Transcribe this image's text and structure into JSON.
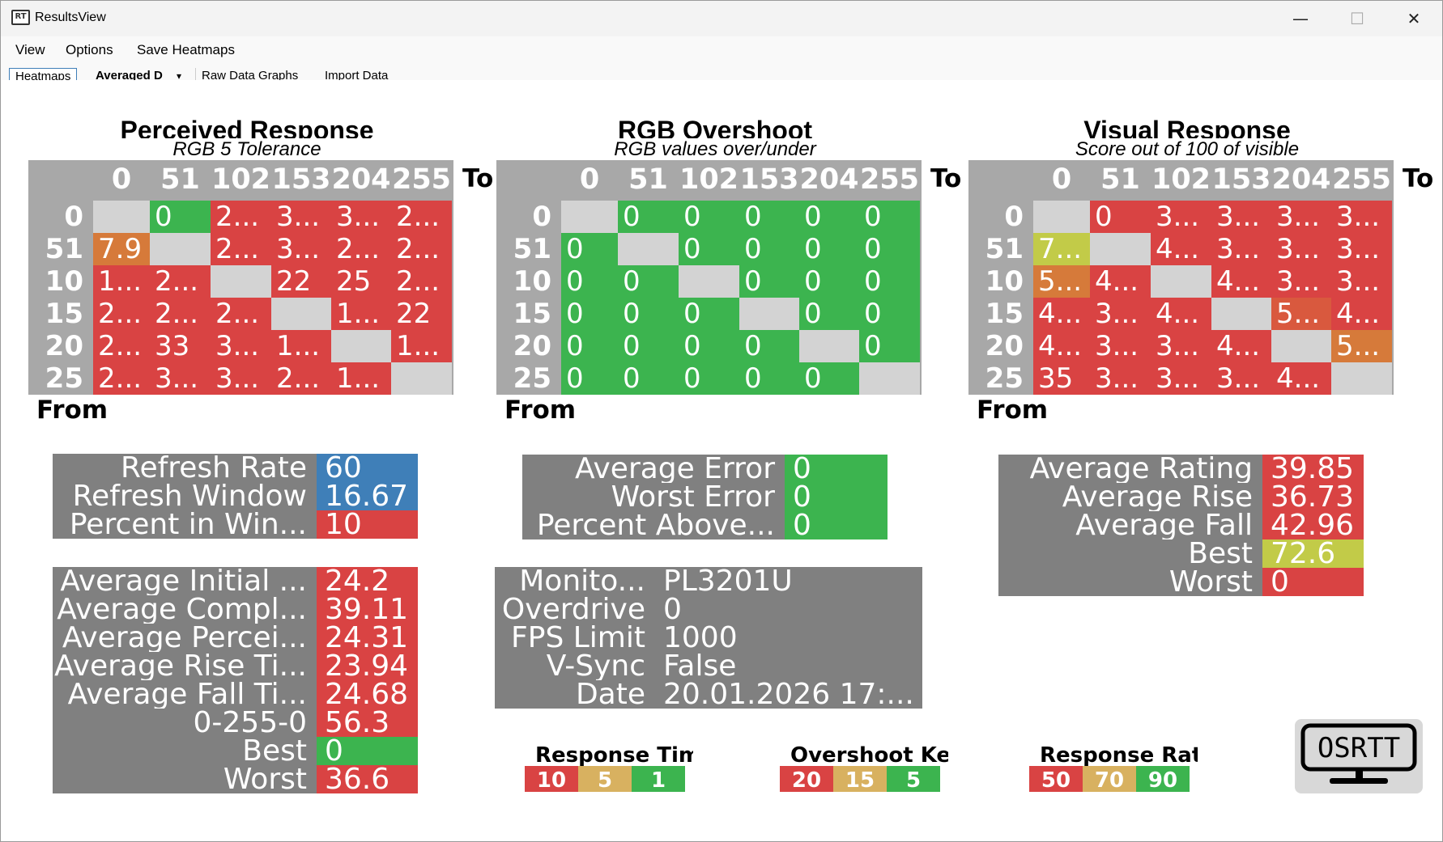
{
  "window": {
    "title": "ResultsView",
    "icon": "app-rt-icon"
  },
  "menu": [
    "View",
    "Options",
    "Save Heatmaps"
  ],
  "tabs": [
    "Heatmaps",
    "Averaged D",
    "Raw Data Graphs",
    "Import Data"
  ],
  "colors": {
    "red": "#d94343",
    "green": "#3cb44f",
    "grey_diag": "#d3d3d3",
    "header_bg": "#a8a8a8",
    "blue": "#3f7fb8",
    "orange": "#d67a3a",
    "yellowgreen": "#c2cb48",
    "gold": "#d8b160",
    "panel_grey": "#808080"
  },
  "heatmaps": [
    {
      "title": "Perceived Response",
      "subtitle": "RGB 5 Tolerance",
      "to_label": "To",
      "from_label": "From",
      "cols": [
        "0",
        "51",
        "102",
        "153",
        "204",
        "255"
      ],
      "rows": [
        "0",
        "51",
        "10",
        "15",
        "20",
        "25"
      ],
      "cells": [
        [
          "",
          "0",
          "2...",
          "3...",
          "3...",
          "2..."
        ],
        [
          "7.9",
          "",
          "2...",
          "3...",
          "2...",
          "2..."
        ],
        [
          "1...",
          "2...",
          "",
          "22",
          "25",
          "2..."
        ],
        [
          "2...",
          "2...",
          "2...",
          "",
          "1...",
          "22"
        ],
        [
          "2...",
          "33",
          "3...",
          "1...",
          "",
          "1..."
        ],
        [
          "2...",
          "3...",
          "3...",
          "2...",
          "1...",
          ""
        ]
      ],
      "colors": [
        [
          "g",
          "G",
          "R",
          "R",
          "R",
          "R"
        ],
        [
          "O",
          "g",
          "R",
          "R",
          "R",
          "R"
        ],
        [
          "R",
          "R",
          "g",
          "R",
          "R",
          "R"
        ],
        [
          "R",
          "R",
          "R",
          "g",
          "R",
          "R"
        ],
        [
          "R",
          "R",
          "R",
          "R",
          "g",
          "R"
        ],
        [
          "R",
          "R",
          "R",
          "R",
          "R",
          "g"
        ]
      ]
    },
    {
      "title": "RGB Overshoot",
      "subtitle": "RGB values over/under",
      "to_label": "To",
      "from_label": "From",
      "cols": [
        "0",
        "51",
        "102",
        "153",
        "204",
        "255"
      ],
      "rows": [
        "0",
        "51",
        "10",
        "15",
        "20",
        "25"
      ],
      "cells": [
        [
          "",
          "0",
          "0",
          "0",
          "0",
          "0"
        ],
        [
          "0",
          "",
          "0",
          "0",
          "0",
          "0"
        ],
        [
          "0",
          "0",
          "",
          "0",
          "0",
          "0"
        ],
        [
          "0",
          "0",
          "0",
          "",
          "0",
          "0"
        ],
        [
          "0",
          "0",
          "0",
          "0",
          "",
          "0"
        ],
        [
          "0",
          "0",
          "0",
          "0",
          "0",
          ""
        ]
      ],
      "colors": [
        [
          "g",
          "G",
          "G",
          "G",
          "G",
          "G"
        ],
        [
          "G",
          "g",
          "G",
          "G",
          "G",
          "G"
        ],
        [
          "G",
          "G",
          "g",
          "G",
          "G",
          "G"
        ],
        [
          "G",
          "G",
          "G",
          "g",
          "G",
          "G"
        ],
        [
          "G",
          "G",
          "G",
          "G",
          "g",
          "G"
        ],
        [
          "G",
          "G",
          "G",
          "G",
          "G",
          "g"
        ]
      ]
    },
    {
      "title": "Visual Response",
      "subtitle": "Score out of 100 of visible",
      "to_label": "To",
      "from_label": "From",
      "cols": [
        "0",
        "51",
        "102",
        "153",
        "204",
        "255"
      ],
      "rows": [
        "0",
        "51",
        "10",
        "15",
        "20",
        "25"
      ],
      "cells": [
        [
          "",
          "0",
          "3...",
          "3...",
          "3...",
          "3..."
        ],
        [
          "7...",
          "",
          "4...",
          "3...",
          "3...",
          "3..."
        ],
        [
          "5...",
          "4...",
          "",
          "4...",
          "3...",
          "3..."
        ],
        [
          "4...",
          "3...",
          "4...",
          "",
          "5...",
          "4..."
        ],
        [
          "4...",
          "3...",
          "3...",
          "4...",
          "",
          "5..."
        ],
        [
          "35",
          "3...",
          "3...",
          "3...",
          "4...",
          ""
        ]
      ],
      "colors": [
        [
          "g",
          "R",
          "R",
          "R",
          "R",
          "R"
        ],
        [
          "Y",
          "g",
          "R",
          "R",
          "R",
          "R"
        ],
        [
          "O",
          "R",
          "g",
          "R",
          "R",
          "R"
        ],
        [
          "R",
          "R",
          "R",
          "g",
          "O2",
          "R"
        ],
        [
          "R",
          "R",
          "R",
          "R",
          "g",
          "O"
        ],
        [
          "R",
          "R",
          "R",
          "R",
          "R",
          "g"
        ]
      ]
    }
  ],
  "stats": {
    "refresh": [
      {
        "label": "Refresh Rate",
        "value": "60",
        "bg": "blue"
      },
      {
        "label": "Refresh Window",
        "value": "16.67",
        "bg": "blue"
      },
      {
        "label": "Percent in Win...",
        "value": "10",
        "bg": "red"
      }
    ],
    "response": [
      {
        "label": "Average Initial ...",
        "value": "24.2",
        "bg": "red"
      },
      {
        "label": "Average Compl...",
        "value": "39.11",
        "bg": "red"
      },
      {
        "label": "Average Percei...",
        "value": "24.31",
        "bg": "red"
      },
      {
        "label": "Average Rise Ti...",
        "value": "23.94",
        "bg": "red"
      },
      {
        "label": "Average Fall Ti...",
        "value": "24.68",
        "bg": "red"
      },
      {
        "label": "0-255-0",
        "value": "56.3",
        "bg": "red"
      },
      {
        "label": "Best",
        "value": "0",
        "bg": "green"
      },
      {
        "label": "Worst",
        "value": "36.6",
        "bg": "red"
      }
    ],
    "overshoot": [
      {
        "label": "Average Error",
        "value": "0",
        "bg": "green"
      },
      {
        "label": "Worst Error",
        "value": "0",
        "bg": "green"
      },
      {
        "label": "Percent Above...",
        "value": "0",
        "bg": "green"
      }
    ],
    "info": [
      {
        "label": "Monito...",
        "value": "PL3201U"
      },
      {
        "label": "Overdrive",
        "value": "0"
      },
      {
        "label": "FPS Limit",
        "value": "1000"
      },
      {
        "label": "V-Sync",
        "value": "False"
      },
      {
        "label": "Date",
        "value": "20.01.2026 17:..."
      }
    ],
    "visual": [
      {
        "label": "Average Rating",
        "value": "39.85",
        "bg": "red"
      },
      {
        "label": "Average Rise",
        "value": "36.73",
        "bg": "red"
      },
      {
        "label": "Average Fall",
        "value": "42.96",
        "bg": "red"
      },
      {
        "label": "Best",
        "value": "72.6",
        "bg": "yellowgreen"
      },
      {
        "label": "Worst",
        "value": "0",
        "bg": "red"
      }
    ]
  },
  "legends": [
    {
      "title": "Response Time",
      "values": [
        "10",
        "5",
        "1"
      ]
    },
    {
      "title": "Overshoot Key",
      "values": [
        "20",
        "15",
        "5"
      ]
    },
    {
      "title": "Response Rating",
      "values": [
        "50",
        "70",
        "90"
      ]
    }
  ],
  "logo": {
    "text": "OSRTT"
  }
}
